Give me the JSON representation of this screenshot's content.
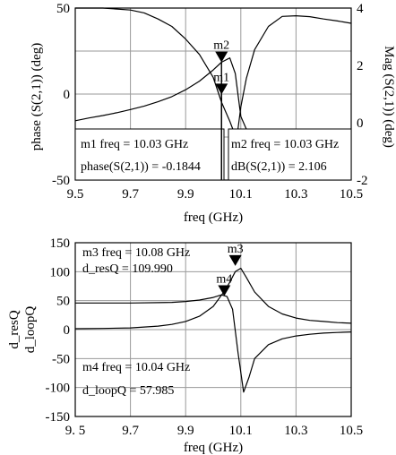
{
  "chart_data": [
    {
      "type": "line",
      "xlabel": "freq (GHz)",
      "ylabel": "phase (S(2,1)) (deg)",
      "y2label": "Mag (S(2,1)) (deg)",
      "xlim": [
        9.5,
        10.5
      ],
      "ylim": [
        -50,
        50
      ],
      "y2lim": [
        -2,
        4
      ],
      "xticks": [
        "9.5",
        "9.7",
        "9.9",
        "10.1",
        "10.3",
        "10.5"
      ],
      "yticks": [
        "50",
        "0",
        "-50"
      ],
      "y2ticks": [
        "4",
        "2",
        "0",
        "-2"
      ],
      "grid": true,
      "series": [
        {
          "axis": "left",
          "x": [
            9.5,
            9.55,
            9.6,
            9.65,
            9.7,
            9.75,
            9.8,
            9.85,
            9.9,
            9.95,
            10.0,
            10.03,
            10.06,
            10.08,
            10.1,
            10.13,
            10.16,
            10.2,
            10.25,
            10.3,
            10.35,
            10.4,
            10.45,
            10.5
          ],
          "y": [
            -15.5,
            -13.9,
            -12.5,
            -10.9,
            -9.0,
            -7.0,
            -4.5,
            -1.5,
            2.5,
            7.5,
            14.0,
            18.5,
            21.0,
            12.0,
            -13.0,
            -24.0,
            -27.0,
            -28.5,
            -29.5,
            -30.0,
            -30.5,
            -31.0,
            -31.3,
            -31.5
          ]
        },
        {
          "axis": "right",
          "x": [
            9.5,
            9.6,
            9.7,
            9.75,
            9.8,
            9.85,
            9.9,
            9.95,
            10.0,
            10.03,
            10.06,
            10.08,
            10.09,
            10.1,
            10.12,
            10.15,
            10.2,
            10.25,
            10.3,
            10.35,
            10.4,
            10.45,
            10.5
          ],
          "y": [
            4.0,
            4.0,
            3.93,
            3.83,
            3.62,
            3.36,
            2.92,
            2.38,
            1.58,
            0.72,
            0.05,
            -0.45,
            -0.2,
            0.55,
            1.55,
            2.55,
            3.36,
            3.71,
            3.73,
            3.7,
            3.62,
            3.55,
            3.47
          ]
        }
      ],
      "markers": [
        {
          "name": "m1",
          "x": 10.03,
          "y": -0.1844
        },
        {
          "name": "m2",
          "x": 10.03,
          "y": 2.106
        }
      ],
      "annotations": [
        {
          "line1": "m1 freq = 10.03 GHz",
          "line2": "phase(S(2,1)) = -0.1844"
        },
        {
          "line1": "m2 freq = 10.03 GHz",
          "line2": "dB(S(2,1)) = 2.106"
        }
      ]
    },
    {
      "type": "line",
      "xlabel": "freq (GHz)",
      "ylabel": "d_resQ\nd_loopQ",
      "xlim": [
        9.5,
        10.5
      ],
      "ylim": [
        -150,
        150
      ],
      "xticks": [
        "9. 5",
        "9.7",
        "9.9",
        "10.1",
        "10.3",
        "10.5"
      ],
      "yticks": [
        "150",
        "100",
        "50",
        "0",
        "-50",
        "-100",
        "-150"
      ],
      "grid": true,
      "series": [
        {
          "x": [
            9.5,
            9.6,
            9.7,
            9.75,
            9.8,
            9.85,
            9.9,
            9.95,
            10.0,
            10.04,
            10.06,
            10.08,
            10.1,
            10.12,
            10.15,
            10.2,
            10.25,
            10.3,
            10.35,
            10.4,
            10.45,
            10.5
          ],
          "y": [
            1.5,
            2.0,
            3.0,
            4.5,
            6.0,
            9.0,
            14.0,
            23.0,
            40.0,
            66.0,
            82.0,
            100.0,
            106.0,
            90.0,
            65.0,
            40.0,
            27.0,
            20.0,
            16.0,
            14.0,
            12.0,
            11.0
          ]
        },
        {
          "x": [
            9.5,
            9.6,
            9.7,
            9.8,
            9.85,
            9.9,
            9.95,
            10.0,
            10.03,
            10.05,
            10.07,
            10.09,
            10.11,
            10.13,
            10.15,
            10.2,
            10.25,
            10.3,
            10.35,
            10.4,
            10.45,
            10.5
          ],
          "y": [
            46.0,
            46.0,
            46.0,
            46.5,
            47.0,
            48.5,
            51.0,
            55.5,
            60.0,
            57.0,
            35.0,
            -40.0,
            -108.0,
            -82.0,
            -50.0,
            -26.0,
            -16.0,
            -11.0,
            -8.0,
            -6.0,
            -5.0,
            -4.0
          ]
        }
      ],
      "markers": [
        {
          "name": "m3",
          "x": 10.08,
          "y": 109.99
        },
        {
          "name": "m4",
          "x": 10.04,
          "y": 57.985
        }
      ],
      "annotations": [
        {
          "line1": "m3 freq = 10.08 GHz",
          "line2": "d_resQ = 109.990"
        },
        {
          "line1": "m4 freq = 10.04 GHz",
          "line2": "d_loopQ = 57.985"
        }
      ]
    }
  ]
}
